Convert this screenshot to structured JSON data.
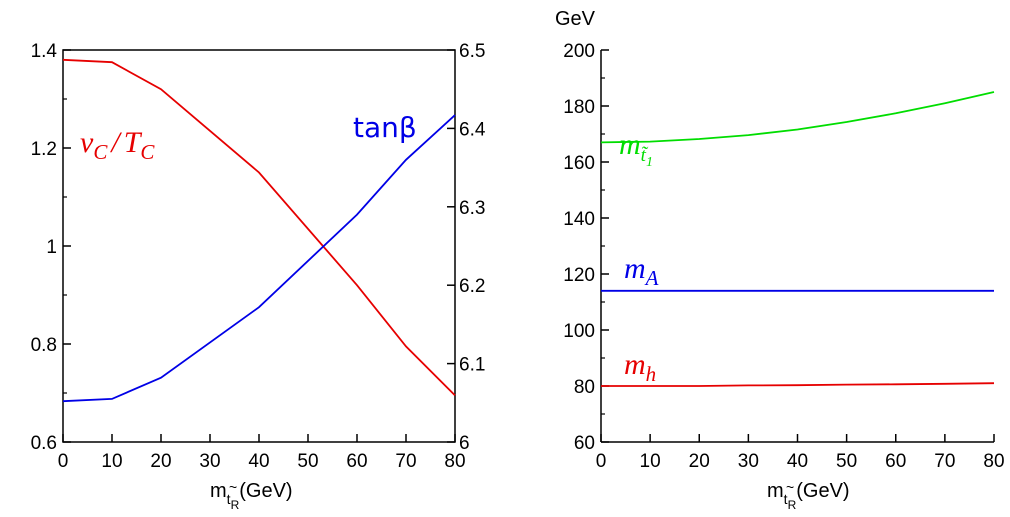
{
  "chart_data": [
    {
      "type": "line",
      "title": "",
      "xlabel": {
        "main": "m",
        "tilde": "~",
        "sub1": "t",
        "sub2": "R",
        "unit": "(GeV)"
      },
      "x": [
        0,
        10,
        20,
        40,
        60,
        70,
        80
      ],
      "xlim": [
        0,
        80
      ],
      "xticks": [
        "0",
        "10",
        "20",
        "30",
        "40",
        "50",
        "60",
        "70",
        "80"
      ],
      "ylim_left": [
        0.6,
        1.4
      ],
      "yticks_left": [
        "0.6",
        "0.8",
        "1",
        "1.2",
        "1.4"
      ],
      "ylim_right": [
        6.0,
        6.5
      ],
      "yticks_right": [
        "6",
        "6.1",
        "6.2",
        "6.3",
        "6.4",
        "6.5"
      ],
      "grid": false,
      "series": [
        {
          "name_v": "v",
          "name_sub_c": "C",
          "name_slash": "/",
          "name_t": "T",
          "axis": "left",
          "color": "#e60000",
          "values": [
            1.38,
            1.375,
            1.32,
            1.15,
            0.92,
            0.795,
            0.695
          ]
        },
        {
          "name": "tanβ",
          "axis": "right",
          "color": "#0000e6",
          "values": [
            6.052,
            6.055,
            6.082,
            6.172,
            6.29,
            6.36,
            6.417
          ]
        }
      ]
    },
    {
      "type": "line",
      "title": "",
      "yunit": "GeV",
      "xlabel": {
        "main": "m",
        "tilde": "~",
        "sub1": "t",
        "sub2": "R",
        "unit": "(GeV)"
      },
      "x": [
        0,
        10,
        20,
        30,
        40,
        50,
        60,
        70,
        80
      ],
      "xlim": [
        0,
        80
      ],
      "xticks": [
        "0",
        "10",
        "20",
        "30",
        "40",
        "50",
        "60",
        "70",
        "80"
      ],
      "ylim": [
        60,
        200
      ],
      "yticks": [
        "60",
        "80",
        "100",
        "120",
        "140",
        "160",
        "180",
        "200"
      ],
      "grid": false,
      "series": [
        {
          "name_m": "m",
          "name_sub": "t̃",
          "name_sub2": "1",
          "color": "#00dd00",
          "values": [
            167,
            167.3,
            168.2,
            169.6,
            171.6,
            174.3,
            177.4,
            181.0,
            185.0
          ]
        },
        {
          "name_m": "m",
          "name_sub": "A",
          "color": "#0000e6",
          "values": [
            114,
            114,
            114,
            114,
            114,
            114,
            114,
            114,
            114
          ]
        },
        {
          "name_m": "m",
          "name_sub": "h",
          "color": "#e60000",
          "values": [
            80,
            80,
            80,
            80.2,
            80.3,
            80.5,
            80.6,
            80.8,
            81
          ]
        }
      ]
    }
  ]
}
